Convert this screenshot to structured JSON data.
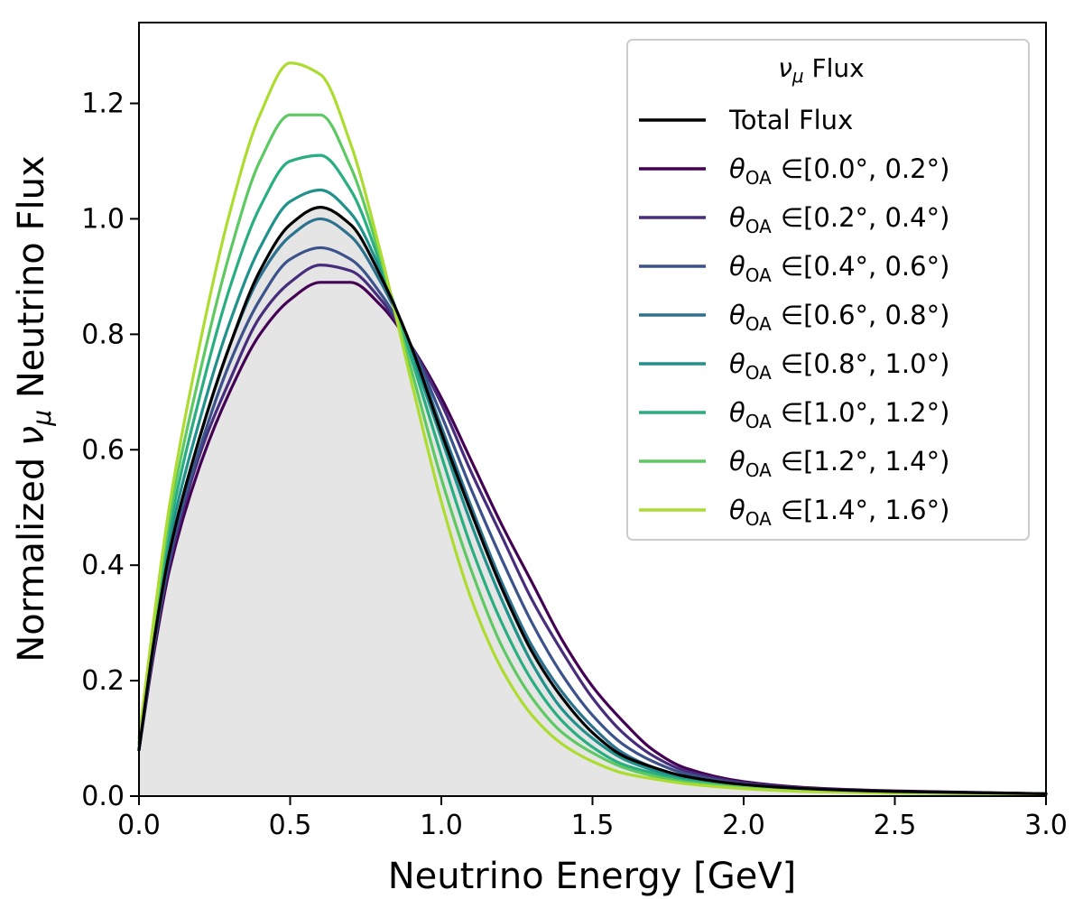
{
  "chart_data": {
    "type": "line",
    "xlabel": "Neutrino Energy [GeV]",
    "ylabel_prefix": "Normalized ",
    "ylabel_symbol": "ν",
    "ylabel_subscript": "μ",
    "ylabel_suffix": " Neutrino Flux",
    "xlim": [
      0.0,
      3.0
    ],
    "ylim": [
      0.0,
      1.34
    ],
    "xticks": [
      "0.0",
      "0.5",
      "1.0",
      "1.5",
      "2.0",
      "2.5",
      "3.0"
    ],
    "yticks": [
      "0.0",
      "0.2",
      "0.4",
      "0.6",
      "0.8",
      "1.0",
      "1.2"
    ],
    "grid": false,
    "shaded_area": {
      "under_series": "Total Flux",
      "color": "#e5e5e5"
    },
    "legend": {
      "title_symbol": "ν",
      "title_subscript": "μ",
      "title_suffix": " Flux",
      "placement": "top-right"
    },
    "series": [
      {
        "name": "Total Flux",
        "color": "#000000",
        "theta": "",
        "range": "",
        "peak_x": 0.6,
        "peak_y": 1.02,
        "x": [
          0,
          0.05,
          0.1,
          0.2,
          0.3,
          0.4,
          0.5,
          0.6,
          0.7,
          0.8,
          0.9,
          1.0,
          1.1,
          1.2,
          1.3,
          1.4,
          1.5,
          1.6,
          1.7,
          1.8,
          2.0,
          2.2,
          2.5,
          3.0
        ],
        "values": [
          0.08,
          0.27,
          0.42,
          0.62,
          0.78,
          0.91,
          0.99,
          1.02,
          0.99,
          0.9,
          0.78,
          0.63,
          0.49,
          0.36,
          0.25,
          0.17,
          0.11,
          0.07,
          0.05,
          0.035,
          0.02,
          0.013,
          0.008,
          0.004
        ]
      },
      {
        "name": "",
        "theta": "θ",
        "theta_sub": "OA",
        "range": "∈[0.0°, 0.2°)",
        "color": "#440154",
        "x": [
          0,
          0.05,
          0.1,
          0.2,
          0.3,
          0.4,
          0.5,
          0.6,
          0.7,
          0.8,
          0.9,
          1.0,
          1.1,
          1.2,
          1.3,
          1.4,
          1.5,
          1.6,
          1.7,
          1.8,
          2.0,
          2.2,
          2.5,
          3.0
        ],
        "values": [
          0.08,
          0.25,
          0.39,
          0.57,
          0.7,
          0.8,
          0.86,
          0.89,
          0.89,
          0.85,
          0.78,
          0.69,
          0.58,
          0.47,
          0.37,
          0.27,
          0.19,
          0.13,
          0.08,
          0.05,
          0.025,
          0.015,
          0.009,
          0.004
        ]
      },
      {
        "name": "",
        "theta": "θ",
        "theta_sub": "OA",
        "range": "∈[0.2°, 0.4°)",
        "color": "#472d7b",
        "x": [
          0,
          0.05,
          0.1,
          0.2,
          0.3,
          0.4,
          0.5,
          0.6,
          0.7,
          0.8,
          0.9,
          1.0,
          1.1,
          1.2,
          1.3,
          1.4,
          1.5,
          1.6,
          1.7,
          1.8,
          2.0,
          2.2,
          2.5,
          3.0
        ],
        "values": [
          0.08,
          0.26,
          0.4,
          0.59,
          0.72,
          0.83,
          0.89,
          0.92,
          0.91,
          0.86,
          0.78,
          0.68,
          0.56,
          0.45,
          0.34,
          0.25,
          0.17,
          0.11,
          0.07,
          0.045,
          0.023,
          0.014,
          0.008,
          0.004
        ]
      },
      {
        "name": "",
        "theta": "θ",
        "theta_sub": "OA",
        "range": "∈[0.4°, 0.6°)",
        "color": "#3b528b",
        "x": [
          0,
          0.05,
          0.1,
          0.2,
          0.3,
          0.4,
          0.5,
          0.6,
          0.7,
          0.8,
          0.9,
          1.0,
          1.1,
          1.2,
          1.3,
          1.4,
          1.5,
          1.6,
          1.7,
          1.8,
          2.0,
          2.2,
          2.5,
          3.0
        ],
        "values": [
          0.08,
          0.26,
          0.41,
          0.6,
          0.75,
          0.86,
          0.93,
          0.95,
          0.93,
          0.87,
          0.78,
          0.66,
          0.53,
          0.41,
          0.3,
          0.21,
          0.14,
          0.09,
          0.06,
          0.04,
          0.021,
          0.013,
          0.008,
          0.004
        ]
      },
      {
        "name": "",
        "theta": "θ",
        "theta_sub": "OA",
        "range": "∈[0.6°, 0.8°)",
        "color": "#2c728e",
        "x": [
          0,
          0.05,
          0.1,
          0.2,
          0.3,
          0.4,
          0.5,
          0.6,
          0.7,
          0.8,
          0.9,
          1.0,
          1.1,
          1.2,
          1.3,
          1.4,
          1.5,
          1.6,
          1.7,
          1.8,
          2.0,
          2.2,
          2.5,
          3.0
        ],
        "values": [
          0.08,
          0.27,
          0.42,
          0.62,
          0.78,
          0.9,
          0.97,
          1.0,
          0.97,
          0.89,
          0.78,
          0.64,
          0.5,
          0.37,
          0.26,
          0.18,
          0.12,
          0.075,
          0.05,
          0.035,
          0.02,
          0.012,
          0.007,
          0.004
        ]
      },
      {
        "name": "",
        "theta": "θ",
        "theta_sub": "OA",
        "range": "∈[0.8°, 1.0°)",
        "color": "#21918c",
        "x": [
          0,
          0.05,
          0.1,
          0.2,
          0.3,
          0.4,
          0.5,
          0.6,
          0.7,
          0.8,
          0.9,
          1.0,
          1.1,
          1.2,
          1.3,
          1.4,
          1.5,
          1.6,
          1.7,
          1.8,
          2.0,
          2.2,
          2.5,
          3.0
        ],
        "values": [
          0.09,
          0.28,
          0.44,
          0.65,
          0.82,
          0.95,
          1.03,
          1.05,
          1.01,
          0.91,
          0.77,
          0.62,
          0.47,
          0.34,
          0.23,
          0.15,
          0.1,
          0.065,
          0.045,
          0.03,
          0.018,
          0.011,
          0.007,
          0.004
        ]
      },
      {
        "name": "",
        "theta": "θ",
        "theta_sub": "OA",
        "range": "∈[1.0°, 1.2°)",
        "color": "#28ae80",
        "x": [
          0,
          0.05,
          0.1,
          0.2,
          0.3,
          0.4,
          0.5,
          0.6,
          0.7,
          0.8,
          0.9,
          1.0,
          1.1,
          1.2,
          1.3,
          1.4,
          1.5,
          1.6,
          1.7,
          1.8,
          2.0,
          2.2,
          2.5,
          3.0
        ],
        "values": [
          0.09,
          0.29,
          0.46,
          0.69,
          0.88,
          1.02,
          1.1,
          1.11,
          1.05,
          0.92,
          0.76,
          0.59,
          0.43,
          0.3,
          0.2,
          0.13,
          0.085,
          0.055,
          0.04,
          0.028,
          0.017,
          0.01,
          0.006,
          0.003
        ]
      },
      {
        "name": "",
        "theta": "θ",
        "theta_sub": "OA",
        "range": "∈[1.2°, 1.4°)",
        "color": "#5ec962",
        "x": [
          0,
          0.05,
          0.1,
          0.2,
          0.3,
          0.4,
          0.5,
          0.6,
          0.7,
          0.8,
          0.9,
          1.0,
          1.1,
          1.2,
          1.3,
          1.4,
          1.5,
          1.6,
          1.7,
          1.8,
          2.0,
          2.2,
          2.5,
          3.0
        ],
        "values": [
          0.09,
          0.3,
          0.48,
          0.73,
          0.94,
          1.1,
          1.18,
          1.18,
          1.09,
          0.93,
          0.74,
          0.55,
          0.39,
          0.26,
          0.17,
          0.11,
          0.075,
          0.05,
          0.035,
          0.025,
          0.015,
          0.009,
          0.006,
          0.003
        ]
      },
      {
        "name": "",
        "theta": "θ",
        "theta_sub": "OA",
        "range": "∈[1.4°, 1.6°)",
        "color": "#addc30",
        "x": [
          0,
          0.05,
          0.1,
          0.2,
          0.3,
          0.4,
          0.5,
          0.6,
          0.7,
          0.8,
          0.9,
          1.0,
          1.1,
          1.2,
          1.3,
          1.4,
          1.5,
          1.6,
          1.7,
          1.8,
          2.0,
          2.2,
          2.5,
          3.0
        ],
        "values": [
          0.1,
          0.31,
          0.5,
          0.78,
          1.01,
          1.18,
          1.27,
          1.25,
          1.13,
          0.94,
          0.72,
          0.51,
          0.34,
          0.22,
          0.14,
          0.09,
          0.06,
          0.04,
          0.03,
          0.022,
          0.013,
          0.008,
          0.005,
          0.003
        ]
      }
    ]
  }
}
